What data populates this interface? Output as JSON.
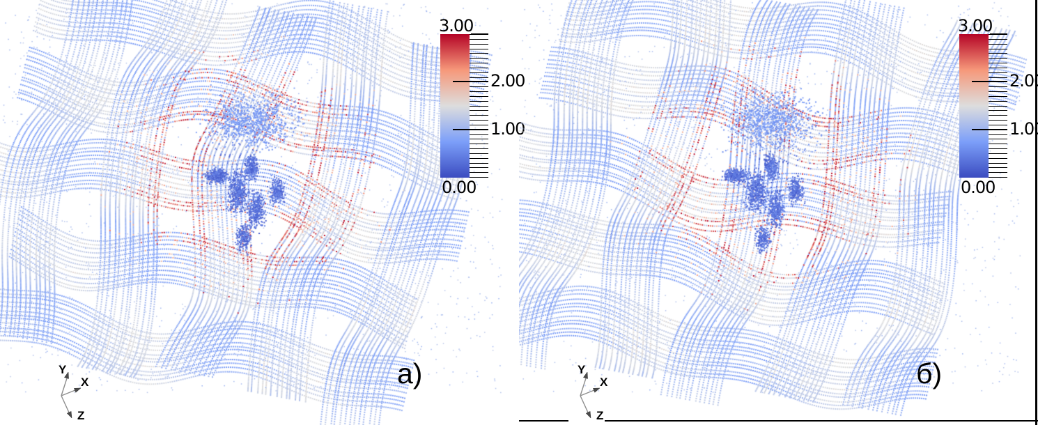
{
  "figure": {
    "background": "#ffffff",
    "panels": [
      {
        "id": "a",
        "label": "а)"
      },
      {
        "id": "b",
        "label": "б)"
      }
    ],
    "axis_triad": {
      "x_label": "X",
      "y_label": "Y",
      "z_label": "Z"
    }
  },
  "chart_data": {
    "type": "scatter",
    "subtype": "3d_point_cloud_pair",
    "title": "",
    "panels": [
      {
        "label": "а)",
        "description": "3D point cloud of a plain-woven fabric (crossing warp/weft yarn fiber bundles rendered as dotted lines) colored by a scalar field. Bulk fibers lie near values 0.5-1.3 (light/medium blue); a ring of high-value arcs 2.2-3.0 (salmon to dark red) surrounds the fabric center; compact low-value clusters 0.1-0.55 (dark blue) form a butterfly shape at the center; sparse light-blue noise dots surround the fabric."
      },
      {
        "label": "б)",
        "description": "Nearly identical woven-fabric point cloud with the same scalar color distribution: light blue yarns, central red high-value arc ring, dark blue central clusters, sparse ambient dots."
      }
    ],
    "colorbar": {
      "range": [
        0,
        3
      ],
      "major_ticks": [
        0,
        1,
        2,
        3
      ],
      "tick_labels": [
        "0.00",
        "1.00",
        "2.00",
        "3.00"
      ],
      "minor_tick_step": 0.1,
      "colormap": "coolwarm",
      "colormap_stops": [
        {
          "t": 0.0,
          "color": "#3b4cc0"
        },
        {
          "t": 0.25,
          "color": "#7c9ff9"
        },
        {
          "t": 0.5,
          "color": "#dddddd"
        },
        {
          "t": 0.75,
          "color": "#f6987a"
        },
        {
          "t": 1.0,
          "color": "#b40426"
        }
      ]
    },
    "axes_triad_labels": [
      "X",
      "Y",
      "Z"
    ],
    "render_params": {
      "panel_size": [
        745,
        610
      ],
      "center": [
        330,
        278
      ],
      "rotation_deg": 12,
      "y_scale": 0.88,
      "z_drop": 0.55,
      "period": 130,
      "crimp": 22,
      "yarn_halfwidth": 42,
      "fibers_per_yarn": 13,
      "yarn_centers": [
        -260,
        -130,
        0,
        130,
        260
      ],
      "extent": 335,
      "dot_step": 3,
      "dot_size": 2,
      "base_value": [
        0.95,
        1.25
      ],
      "depth_shade": 0.3,
      "value_noise": 0.12,
      "hotspot_center_offset": [
        25,
        -33
      ],
      "hot_ring_radius": 115,
      "hot_ring_width": 50,
      "hot_prob": 0.6,
      "hot_value": [
        2.3,
        3.0
      ],
      "warm_ring_radius": 100,
      "warm_ring_width": 70,
      "warm_prob": 0.18,
      "warm_value": [
        1.6,
        2.2
      ],
      "dark_radius": 80,
      "dark_prob": 0.3,
      "dark_value": [
        0.12,
        0.55
      ],
      "scatter_count": 1500,
      "scatter_value": [
        0.95,
        1.25
      ],
      "scatter_size": 1.5,
      "seeds": [
        20,
        77
      ],
      "dark_clusters": [
        {
          "x": -15,
          "y": 30,
          "sx": 12,
          "sy": 24,
          "n": 380
        },
        {
          "x": 12,
          "y": 55,
          "sx": 10,
          "sy": 22,
          "n": 320
        },
        {
          "x": -45,
          "y": 6,
          "sx": 15,
          "sy": 9,
          "n": 260
        },
        {
          "x": 6,
          "y": -6,
          "sx": 8,
          "sy": 14,
          "n": 220
        },
        {
          "x": 42,
          "y": 28,
          "sx": 9,
          "sy": 15,
          "n": 220
        },
        {
          "x": -6,
          "y": 96,
          "sx": 9,
          "sy": 17,
          "n": 200
        }
      ],
      "halo_cluster": {
        "x": 5,
        "y": -72,
        "sx": 55,
        "sy": 34,
        "n": 900,
        "value": [
          0.55,
          0.85
        ]
      }
    }
  }
}
